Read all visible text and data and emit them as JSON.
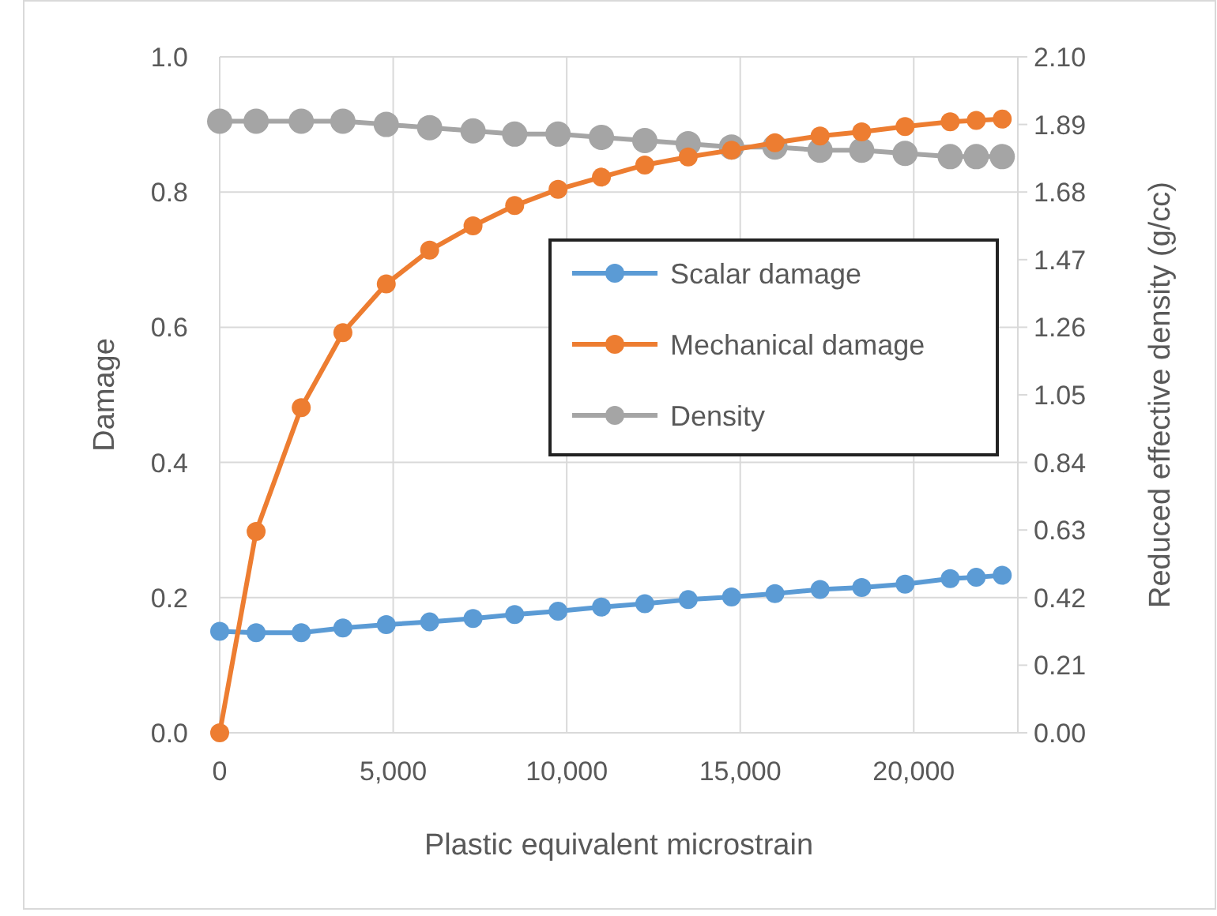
{
  "chart_data": {
    "type": "line",
    "xlabel": "Plastic equivalent microstrain",
    "ylabel": "Damage",
    "y2label": "Reduced effective density (g/cc)",
    "x": [
      0,
      1050,
      2350,
      3550,
      4800,
      6050,
      7300,
      8500,
      9750,
      11000,
      12250,
      13500,
      14750,
      16000,
      17300,
      18500,
      19750,
      21050,
      21800,
      22550
    ],
    "series": [
      {
        "name": "Scalar damage",
        "color": "#5b9bd5",
        "values": [
          0.15,
          0.148,
          0.148,
          0.155,
          0.16,
          0.164,
          0.169,
          0.175,
          0.18,
          0.186,
          0.191,
          0.197,
          0.201,
          0.206,
          0.212,
          0.215,
          0.22,
          0.228,
          0.23,
          0.233
        ]
      },
      {
        "name": "Mechanical damage",
        "color": "#ed7d31",
        "values": [
          0,
          0.298,
          0.481,
          0.592,
          0.664,
          0.714,
          0.75,
          0.78,
          0.804,
          0.822,
          0.84,
          0.852,
          0.862,
          0.873,
          0.883,
          0.889,
          0.897,
          0.904,
          0.906,
          0.908
        ]
      },
      {
        "name": "Density",
        "color": "#a5a5a5",
        "axis": "y2",
        "values": [
          1.9,
          1.9,
          1.9,
          1.9,
          1.89,
          1.88,
          1.87,
          1.86,
          1.86,
          1.85,
          1.84,
          1.83,
          1.82,
          1.82,
          1.81,
          1.81,
          1.8,
          1.79,
          1.79,
          1.79
        ]
      }
    ],
    "xlim": [
      0,
      23000
    ],
    "xticks": [
      {
        "value": 0,
        "label": "0"
      },
      {
        "value": 5000,
        "label": "5,000"
      },
      {
        "value": 10000,
        "label": "10,000"
      },
      {
        "value": 15000,
        "label": "15,000"
      },
      {
        "value": 20000,
        "label": "20,000"
      }
    ],
    "ylim": [
      0,
      1
    ],
    "yticks": [
      {
        "value": 0,
        "label": "0.0"
      },
      {
        "value": 0.2,
        "label": "0.2"
      },
      {
        "value": 0.4,
        "label": "0.4"
      },
      {
        "value": 0.6,
        "label": "0.6"
      },
      {
        "value": 0.8,
        "label": "0.8"
      },
      {
        "value": 1,
        "label": "1.0"
      }
    ],
    "y2lim": [
      0,
      2.1
    ],
    "y2ticks": [
      {
        "value": 0,
        "label": "0.00"
      },
      0.21,
      0.42,
      0.63,
      0.84,
      1.05,
      1.26,
      1.47,
      1.68,
      1.89,
      {
        "value": 2.1,
        "label": "2.10"
      }
    ],
    "grid": true,
    "legend": "right",
    "marker": "circle",
    "line_style": "solid"
  }
}
